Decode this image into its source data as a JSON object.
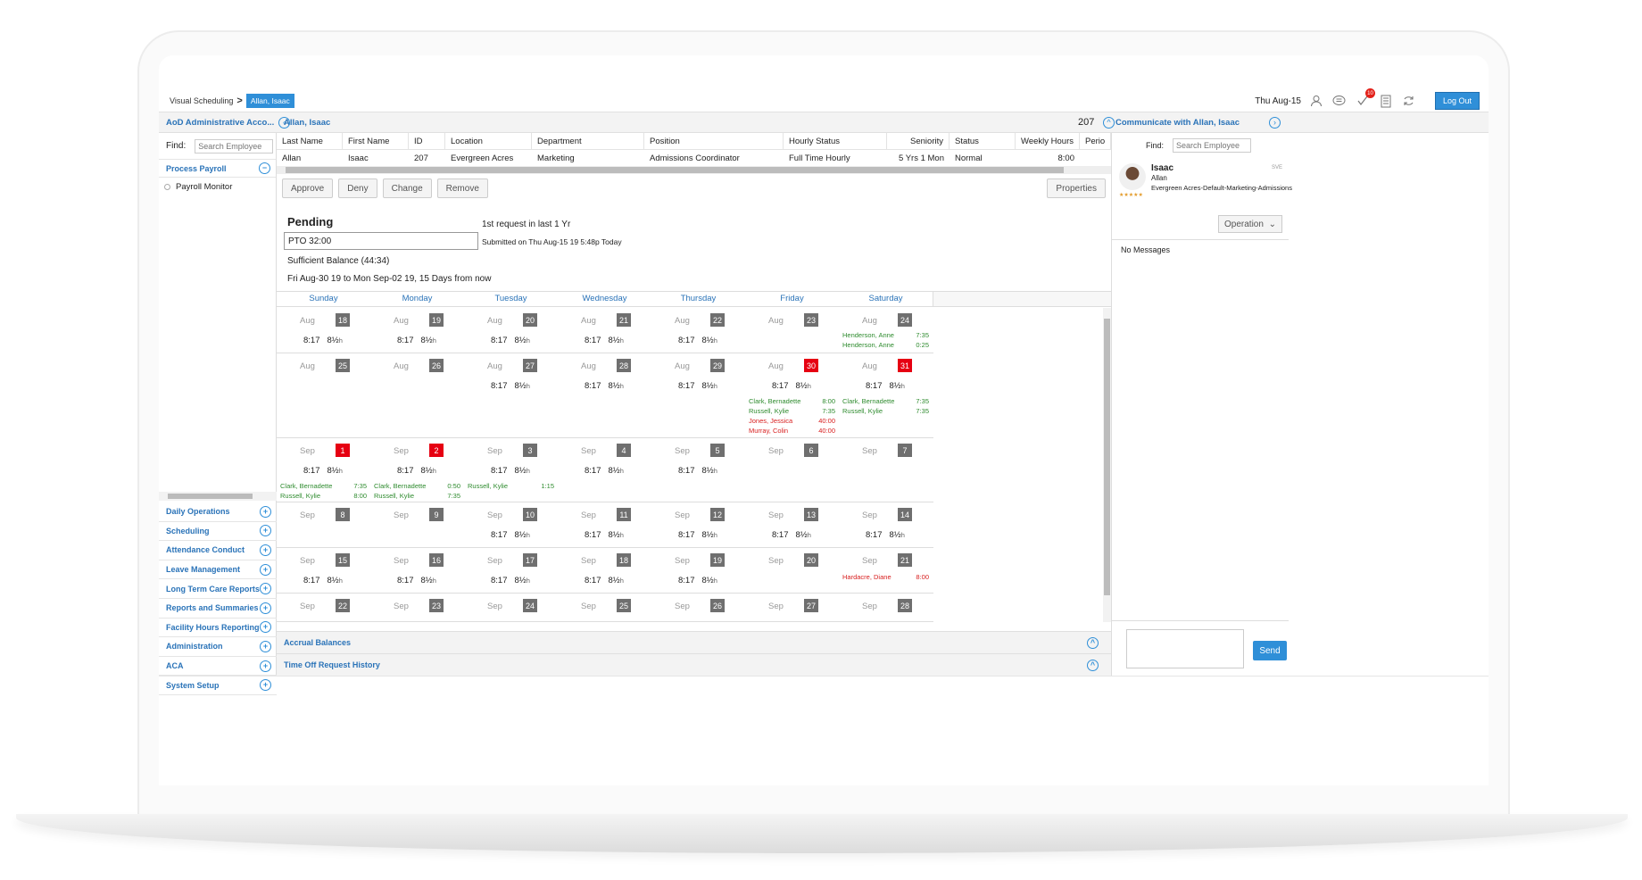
{
  "topbar": {
    "breadcrumb_root": "Visual Scheduling",
    "breadcrumb_sep": ">",
    "breadcrumb_current": "Allan, Isaac",
    "date": "Thu Aug-15",
    "notification_count": "10",
    "logout_label": "Log Out"
  },
  "header": {
    "admin_account": "AoD Administrative Acco...",
    "employee": "Allan, Isaac",
    "employee_count": "207",
    "communicate": "Communicate with Allan, Isaac"
  },
  "left": {
    "find_label": "Find:",
    "search_placeholder": "Search Employee",
    "process_payroll": "Process Payroll",
    "payroll_monitor": "Payroll Monitor",
    "menu": [
      "Daily Operations",
      "Scheduling",
      "Attendance Conduct",
      "Leave Management",
      "Long Term Care Reports",
      "Reports and Summaries",
      "Facility Hours Reporting",
      "Administration",
      "ACA",
      "System Setup"
    ]
  },
  "employee_table": {
    "headers": [
      "Last Name",
      "First Name",
      "ID",
      "Location",
      "Department",
      "Position",
      "Hourly Status",
      "Seniority",
      "Status",
      "Weekly Hours",
      "Perio"
    ],
    "row": [
      "Allan",
      "Isaac",
      "207",
      "Evergreen Acres",
      "Marketing",
      "Admissions Coordinator",
      "Full Time Hourly",
      "5 Yrs 1 Mon",
      "Normal",
      "8:00",
      ""
    ]
  },
  "actions": {
    "approve": "Approve",
    "deny": "Deny",
    "change": "Change",
    "remove": "Remove",
    "properties": "Properties"
  },
  "request": {
    "status": "Pending",
    "type": "PTO 32:00",
    "count_note": "1st request in last 1 Yr",
    "submitted": "Submitted on Thu Aug-15 19 5:48p Today",
    "balance": "Sufficient Balance (44:34)",
    "range": "Fri Aug-30 19 to Mon Sep-02 19, 15 Days from now"
  },
  "calendar": {
    "days": [
      "Sunday",
      "Monday",
      "Tuesday",
      "Wednesday",
      "Thursday",
      "Friday",
      "Saturday"
    ],
    "sched_time": "8:17",
    "sched_hours": "8½",
    "sched_unit": "h",
    "weeks": [
      {
        "height": 51,
        "cells": [
          {
            "mon": "Aug",
            "num": "18",
            "red": false,
            "sched": true,
            "emps": []
          },
          {
            "mon": "Aug",
            "num": "19",
            "red": false,
            "sched": true,
            "emps": []
          },
          {
            "mon": "Aug",
            "num": "20",
            "red": false,
            "sched": true,
            "emps": []
          },
          {
            "mon": "Aug",
            "num": "21",
            "red": false,
            "sched": true,
            "emps": []
          },
          {
            "mon": "Aug",
            "num": "22",
            "red": false,
            "sched": true,
            "emps": []
          },
          {
            "mon": "Aug",
            "num": "23",
            "red": false,
            "sched": false,
            "emps": []
          },
          {
            "mon": "Aug",
            "num": "24",
            "red": false,
            "sched": false,
            "emps_top": 25,
            "emps": [
              {
                "name": "Henderson, Anne",
                "time": "7:35",
                "color": "g"
              },
              {
                "name": "Henderson, Anne",
                "time": "0:25",
                "color": "g"
              }
            ]
          }
        ]
      },
      {
        "height": 95,
        "cells": [
          {
            "mon": "Aug",
            "num": "25",
            "red": false,
            "sched": false,
            "emps": []
          },
          {
            "mon": "Aug",
            "num": "26",
            "red": false,
            "sched": false,
            "emps": []
          },
          {
            "mon": "Aug",
            "num": "27",
            "red": false,
            "sched": true,
            "emps": []
          },
          {
            "mon": "Aug",
            "num": "28",
            "red": false,
            "sched": true,
            "emps": []
          },
          {
            "mon": "Aug",
            "num": "29",
            "red": false,
            "sched": true,
            "emps": []
          },
          {
            "mon": "Aug",
            "num": "30",
            "red": true,
            "sched": true,
            "emps_top": 48,
            "emps": [
              {
                "name": "Clark, Bernadette",
                "time": "8:00",
                "color": "g"
              },
              {
                "name": "Russell, Kylie",
                "time": "7:35",
                "color": "g"
              },
              {
                "name": "Jones, Jessica",
                "time": "40:00",
                "color": "rd"
              },
              {
                "name": "Murray, Colin",
                "time": "40:00",
                "color": "rd"
              }
            ]
          },
          {
            "mon": "Aug",
            "num": "31",
            "red": true,
            "sched": true,
            "emps_top": 48,
            "emps": [
              {
                "name": "Clark, Bernadette",
                "time": "7:35",
                "color": "g"
              },
              {
                "name": "Russell, Kylie",
                "time": "7:35",
                "color": "g"
              }
            ]
          }
        ]
      },
      {
        "height": 72,
        "cells": [
          {
            "mon": "Sep",
            "num": "1",
            "red": true,
            "sched": true,
            "emps_top": 48,
            "emps": [
              {
                "name": "Clark, Bernadette",
                "time": "7:35",
                "color": "g"
              },
              {
                "name": "Russell, Kylie",
                "time": "8:00",
                "color": "g"
              }
            ]
          },
          {
            "mon": "Sep",
            "num": "2",
            "red": true,
            "sched": true,
            "emps_top": 48,
            "emps": [
              {
                "name": "Clark, Bernadette",
                "time": "0:50",
                "color": "g"
              },
              {
                "name": "Russell, Kylie",
                "time": "7:35",
                "color": "g"
              }
            ]
          },
          {
            "mon": "Sep",
            "num": "3",
            "red": false,
            "sched": true,
            "emps_top": 48,
            "emps": [
              {
                "name": "Russell, Kylie",
                "time": "1:15",
                "color": "g"
              }
            ]
          },
          {
            "mon": "Sep",
            "num": "4",
            "red": false,
            "sched": true,
            "emps": []
          },
          {
            "mon": "Sep",
            "num": "5",
            "red": false,
            "sched": true,
            "emps": []
          },
          {
            "mon": "Sep",
            "num": "6",
            "red": false,
            "sched": false,
            "emps": []
          },
          {
            "mon": "Sep",
            "num": "7",
            "red": false,
            "sched": false,
            "emps": []
          }
        ]
      },
      {
        "height": 51,
        "cells": [
          {
            "mon": "Sep",
            "num": "8",
            "red": false,
            "sched": false,
            "emps": []
          },
          {
            "mon": "Sep",
            "num": "9",
            "red": false,
            "sched": false,
            "emps": []
          },
          {
            "mon": "Sep",
            "num": "10",
            "red": false,
            "sched": true,
            "emps": []
          },
          {
            "mon": "Sep",
            "num": "11",
            "red": false,
            "sched": true,
            "emps": []
          },
          {
            "mon": "Sep",
            "num": "12",
            "red": false,
            "sched": true,
            "emps": []
          },
          {
            "mon": "Sep",
            "num": "13",
            "red": false,
            "sched": true,
            "emps": []
          },
          {
            "mon": "Sep",
            "num": "14",
            "red": false,
            "sched": true,
            "emps": []
          }
        ]
      },
      {
        "height": 51,
        "cells": [
          {
            "mon": "Sep",
            "num": "15",
            "red": false,
            "sched": true,
            "emps": []
          },
          {
            "mon": "Sep",
            "num": "16",
            "red": false,
            "sched": true,
            "emps": []
          },
          {
            "mon": "Sep",
            "num": "17",
            "red": false,
            "sched": true,
            "emps": []
          },
          {
            "mon": "Sep",
            "num": "18",
            "red": false,
            "sched": true,
            "emps": []
          },
          {
            "mon": "Sep",
            "num": "19",
            "red": false,
            "sched": true,
            "emps": []
          },
          {
            "mon": "Sep",
            "num": "20",
            "red": false,
            "sched": false,
            "emps": []
          },
          {
            "mon": "Sep",
            "num": "21",
            "red": false,
            "sched": false,
            "emps_top": 27,
            "emps": [
              {
                "name": "Hardacre, Diane",
                "time": "8:00",
                "color": "rd"
              }
            ]
          }
        ]
      },
      {
        "height": 32,
        "cells": [
          {
            "mon": "Sep",
            "num": "22",
            "red": false,
            "sched": false,
            "emps": []
          },
          {
            "mon": "Sep",
            "num": "23",
            "red": false,
            "sched": false,
            "emps": []
          },
          {
            "mon": "Sep",
            "num": "24",
            "red": false,
            "sched": false,
            "emps": []
          },
          {
            "mon": "Sep",
            "num": "25",
            "red": false,
            "sched": false,
            "emps": []
          },
          {
            "mon": "Sep",
            "num": "26",
            "red": false,
            "sched": false,
            "emps": []
          },
          {
            "mon": "Sep",
            "num": "27",
            "red": false,
            "sched": false,
            "emps": []
          },
          {
            "mon": "Sep",
            "num": "28",
            "red": false,
            "sched": false,
            "emps": []
          }
        ]
      }
    ]
  },
  "sections": {
    "accrual": "Accrual Balances",
    "history": "Time Off Request History"
  },
  "right": {
    "find_label": "Find:",
    "search_placeholder": "Search Employee",
    "first_name": "Isaac",
    "last_name": "Allan",
    "dept": "Evergreen Acres-Default-Marketing-Admissions",
    "tag": "SVE",
    "stars": "★★★★★",
    "operation": "Operation",
    "no_messages": "No Messages",
    "send": "Send"
  },
  "colors": {
    "accent": "#2f8fd8",
    "link": "#2a73b8",
    "red_day": "#e60012",
    "green_text": "#2e8b2e",
    "red_text": "#d82020"
  }
}
